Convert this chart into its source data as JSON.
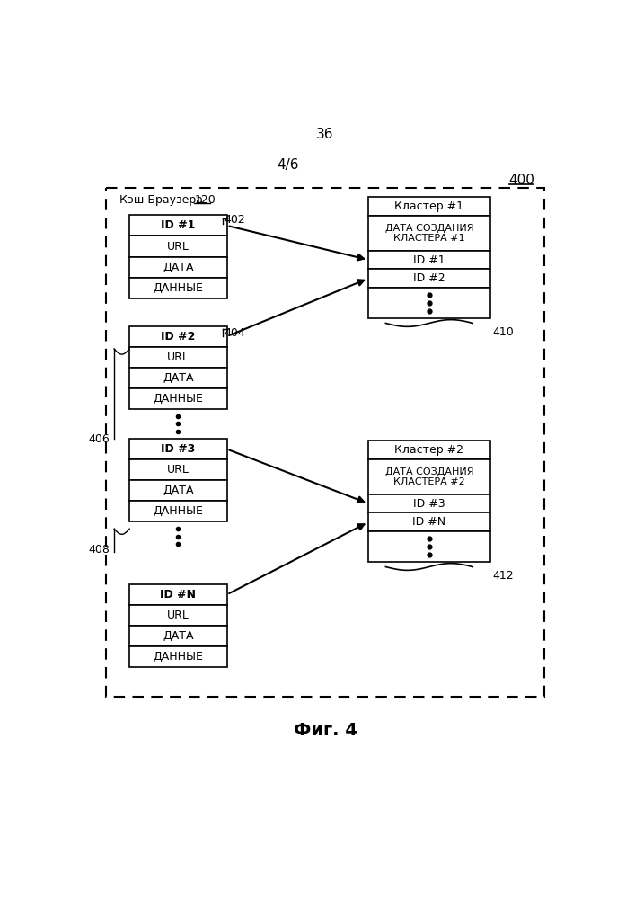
{
  "page_number": "36",
  "page_fraction": "4/6",
  "figure_label": "400",
  "figure_caption": "Фиг. 4",
  "cache_label": "Кэш Браузера",
  "cache_label_ref": "120",
  "entry_labels": [
    "ID #1",
    "ID #2",
    "ID #3",
    "ID #N"
  ],
  "entry_rows": [
    "URL",
    "ДАТА",
    "ДАННЫЕ"
  ],
  "cluster1_title": "Кластер #1",
  "cluster1_date": "ДАТА СОЗДАНИЯ\nКЛАСТЕРА #1",
  "cluster1_ids": [
    "ID #1",
    "ID #2"
  ],
  "cluster2_title": "Кластер #2",
  "cluster2_date": "ДАТА СОЗДАНИЯ\nКЛАСТЕРА #2",
  "cluster2_ids": [
    "ID #3",
    "ID #N"
  ],
  "ref_402": "402",
  "ref_404": "404",
  "ref_406": "406",
  "ref_408": "408",
  "ref_410": "410",
  "ref_412": "412",
  "bg": "#ffffff",
  "box_fill": "#ffffff",
  "box_edge": "#000000",
  "dash_color": "#000000",
  "text_color": "#000000",
  "arrow_color": "#000000"
}
